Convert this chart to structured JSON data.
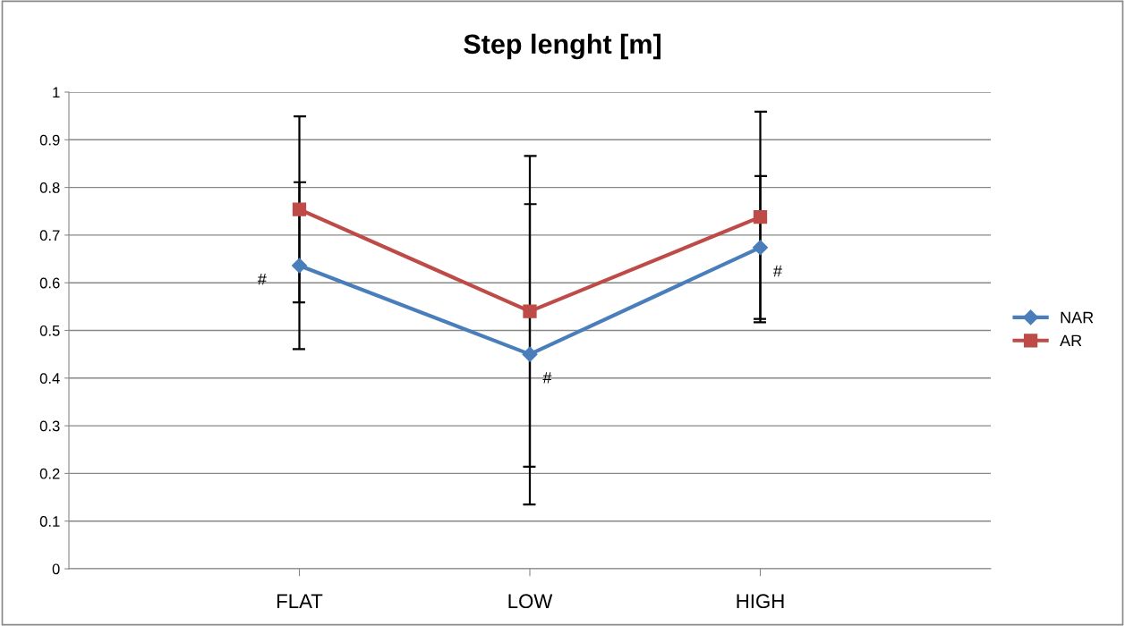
{
  "chart_data": {
    "type": "line",
    "title": "Step lenght [m]",
    "categories": [
      "FLAT",
      "LOW",
      "HIGH"
    ],
    "series": [
      {
        "name": "NAR",
        "color": "#4a7ebb",
        "marker": "diamond",
        "values": [
          0.636,
          0.45,
          0.674
        ],
        "errors": [
          0.175,
          0.315,
          0.15
        ]
      },
      {
        "name": "AR",
        "color": "#be4b48",
        "marker": "square",
        "values": [
          0.754,
          0.54,
          0.738
        ],
        "errors": [
          0.195,
          0.326,
          0.221
        ]
      }
    ],
    "ylim": [
      0,
      1
    ],
    "yticks": [
      0,
      0.1,
      0.2,
      0.3,
      0.4,
      0.5,
      0.6,
      0.7,
      0.8,
      0.9,
      1
    ],
    "grid": "y",
    "legend": "right",
    "annotations": [
      {
        "text": "#",
        "x": "FLAT",
        "y": 0.636
      },
      {
        "text": "#",
        "x": "LOW",
        "y": 0.45
      },
      {
        "text": "#",
        "x": "HIGH",
        "y": 0.674
      }
    ]
  }
}
